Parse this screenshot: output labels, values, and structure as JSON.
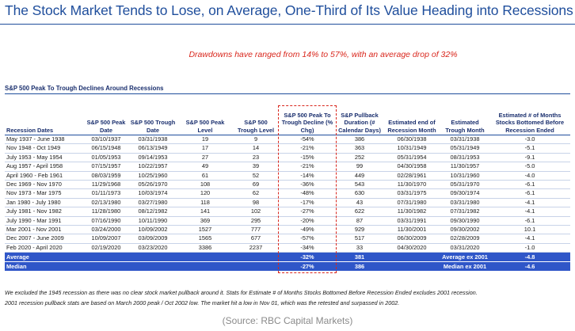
{
  "title": "The Stock Market Tends to Lose, on Average, One-Third of Its Value Heading into Recessions",
  "subtitle": "Drawdowns have ranged from 14% to 57%, with an average drop of 32%",
  "table_title": "S&P 500 Peak To Trough Declines Around Recessions",
  "headers": [
    "Recession Dates",
    "S&P 500 Peak Date",
    "S&P 500 Trough Date",
    "S&P 500 Peak Level",
    "S&P 500 Trough Level",
    "S&P 500 Peak To Trough Decline (% Chg)",
    "S&P Pullback Duration (# Calendar Days)",
    "Estimated end of Recession Month",
    "Estimated Trough Month",
    "Estimated # of Months Stocks Bottomed Before Recession Ended"
  ],
  "rows": [
    [
      "May 1937 - June 1938",
      "03/10/1937",
      "03/31/1938",
      "19",
      "9",
      "-54%",
      "386",
      "06/30/1938",
      "03/31/1938",
      "-3.0"
    ],
    [
      "Nov 1948 - Oct 1949",
      "06/15/1948",
      "06/13/1949",
      "17",
      "14",
      "-21%",
      "363",
      "10/31/1949",
      "05/31/1949",
      "-5.1"
    ],
    [
      "July 1953 - May 1954",
      "01/05/1953",
      "09/14/1953",
      "27",
      "23",
      "-15%",
      "252",
      "05/31/1954",
      "08/31/1953",
      "-9.1"
    ],
    [
      "Aug 1957 - April 1958",
      "07/15/1957",
      "10/22/1957",
      "49",
      "39",
      "-21%",
      "99",
      "04/30/1958",
      "11/30/1957",
      "-5.0"
    ],
    [
      "April 1960 - Feb 1961",
      "08/03/1959",
      "10/25/1960",
      "61",
      "52",
      "-14%",
      "449",
      "02/28/1961",
      "10/31/1960",
      "-4.0"
    ],
    [
      "Dec 1969 - Nov 1970",
      "11/29/1968",
      "05/26/1970",
      "108",
      "69",
      "-36%",
      "543",
      "11/30/1970",
      "05/31/1970",
      "-6.1"
    ],
    [
      "Nov 1973 - Mar 1975",
      "01/11/1973",
      "10/03/1974",
      "120",
      "62",
      "-48%",
      "630",
      "03/31/1975",
      "09/30/1974",
      "-6.1"
    ],
    [
      "Jan 1980 - July 1980",
      "02/13/1980",
      "03/27/1980",
      "118",
      "98",
      "-17%",
      "43",
      "07/31/1980",
      "03/31/1980",
      "-4.1"
    ],
    [
      "July 1981 - Nov 1982",
      "11/28/1980",
      "08/12/1982",
      "141",
      "102",
      "-27%",
      "622",
      "11/30/1982",
      "07/31/1982",
      "-4.1"
    ],
    [
      "July 1990 - Mar 1991",
      "07/16/1990",
      "10/11/1990",
      "369",
      "295",
      "-20%",
      "87",
      "03/31/1991",
      "09/30/1990",
      "-6.1"
    ],
    [
      "Mar 2001 - Nov 2001",
      "03/24/2000",
      "10/09/2002",
      "1527",
      "777",
      "-49%",
      "929",
      "11/30/2001",
      "09/30/2002",
      "10.1"
    ],
    [
      "Dec 2007 - June 2009",
      "10/09/2007",
      "03/09/2009",
      "1565",
      "677",
      "-57%",
      "517",
      "06/30/2009",
      "02/28/2009",
      "-4.1"
    ],
    [
      "Feb 2020 - April 2020",
      "02/19/2020",
      "03/23/2020",
      "3386",
      "2237",
      "-34%",
      "33",
      "04/30/2020",
      "03/31/2020",
      "-1.0"
    ]
  ],
  "summary": [
    {
      "label": "Average",
      "decline": "-32%",
      "duration": "381",
      "ex_label": "Average ex 2001",
      "ex_value": "-4.8"
    },
    {
      "label": "Median",
      "decline": "-27%",
      "duration": "386",
      "ex_label": "Median ex 2001",
      "ex_value": "-4.6"
    }
  ],
  "footnotes": [
    "We excluded the 1945 recession as there was no clear stock market pullback around it. Stats for Estimate # of Months Stocks Bottomed Before Recession Ended excludes 2001 recession.",
    "2001 recession pullback stats are based on March 2000 peak / Oct 2002 low. The market hit a low in Nov 01, which was the retested and surpassed in 2002."
  ],
  "source": "(Source: RBC Capital Markets)",
  "colors": {
    "title": "#1f4e9c",
    "highlight_dash": "#d9261c",
    "summary_bg": "#2f56c8",
    "subtitle": "#d9261c"
  }
}
